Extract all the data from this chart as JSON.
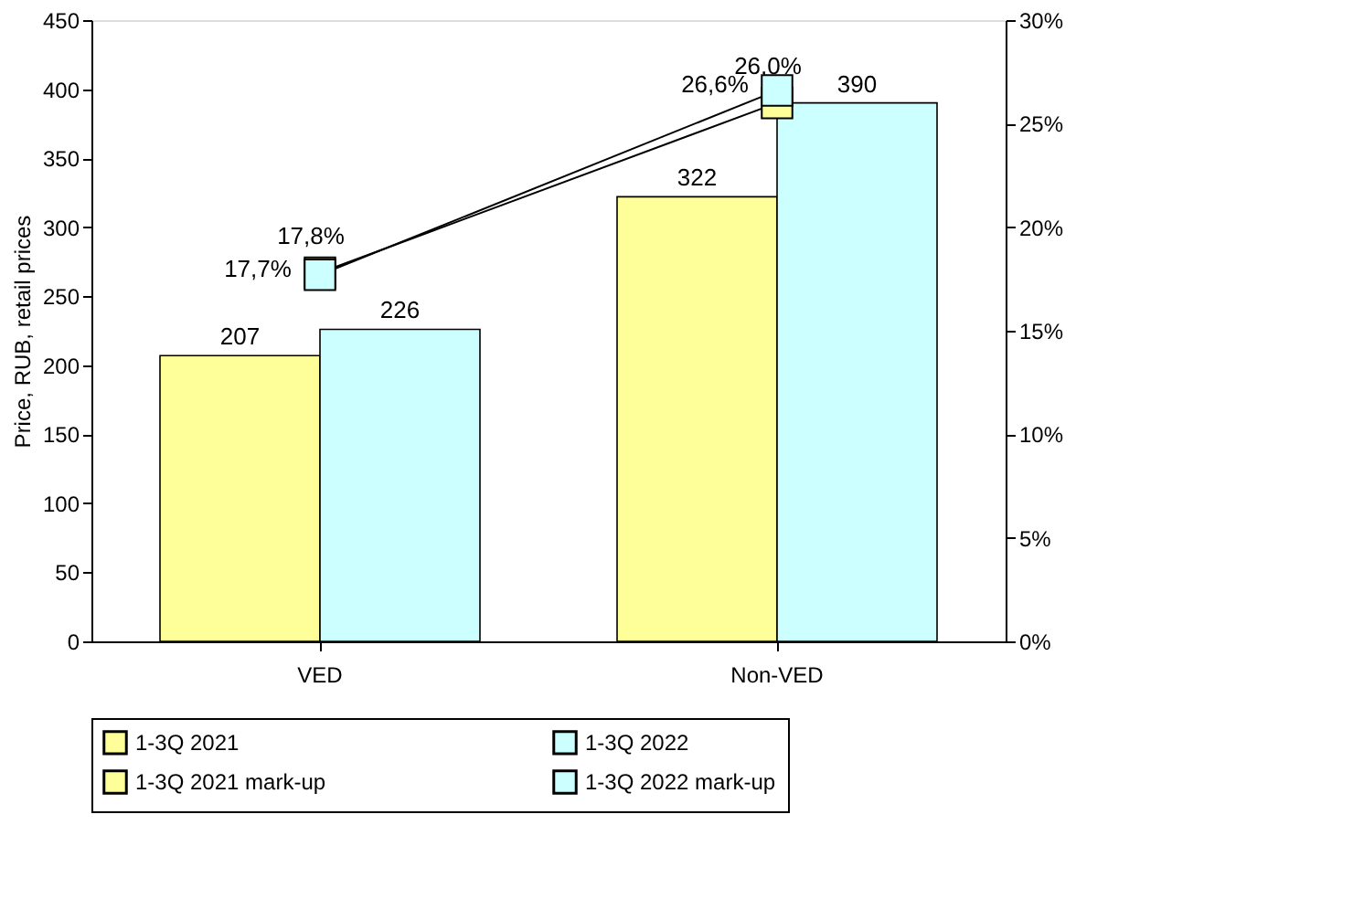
{
  "chart_data": {
    "type": "bar",
    "categories": [
      "VED",
      "Non-VED"
    ],
    "ylabel": "Price, RUB, retail prices",
    "ylim": [
      0,
      450
    ],
    "yticks": [
      0,
      50,
      100,
      150,
      200,
      250,
      300,
      350,
      400,
      450
    ],
    "y2lim": [
      0,
      30
    ],
    "y2ticks": [
      {
        "value": 0,
        "label": "0%"
      },
      {
        "value": 5,
        "label": "5%"
      },
      {
        "value": 10,
        "label": "10%"
      },
      {
        "value": 15,
        "label": "15%"
      },
      {
        "value": 20,
        "label": "20%"
      },
      {
        "value": 25,
        "label": "25%"
      },
      {
        "value": 30,
        "label": "30%"
      }
    ],
    "series": [
      {
        "name": "1-3Q 2021",
        "color": "#ffff99",
        "values": [
          207,
          322
        ],
        "value_labels": [
          "207",
          "322"
        ]
      },
      {
        "name": "1-3Q 2022",
        "color": "#ccffff",
        "values": [
          226,
          390
        ],
        "value_labels": [
          "226",
          "390"
        ]
      },
      {
        "name": "1-3Q 2021 mark-up",
        "type": "line",
        "axis": "y2",
        "color": "#ffff99",
        "values": [
          17.8,
          26.0
        ],
        "value_labels": [
          "17,8%",
          "26,0%"
        ]
      },
      {
        "name": "1-3Q 2022 mark-up",
        "type": "line",
        "axis": "y2",
        "color": "#ccffff",
        "values": [
          17.7,
          26.6
        ],
        "value_labels": [
          "17,7%",
          "26,6%"
        ]
      }
    ],
    "grid": false,
    "legend": "bottom",
    "marker": "square",
    "line_style": "solid"
  }
}
